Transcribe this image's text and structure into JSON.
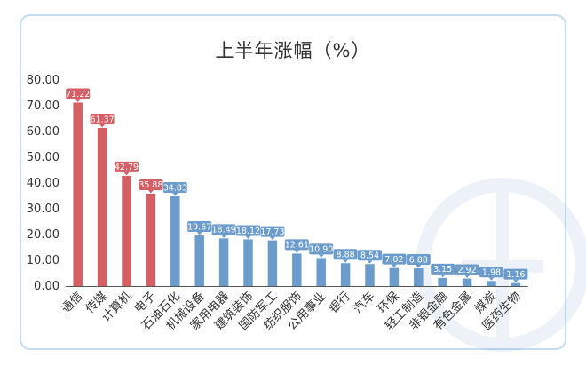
{
  "chart_data": {
    "type": "bar",
    "title": "上半年涨幅（%）",
    "xlabel": "",
    "ylabel": "",
    "ylim": [
      0,
      80
    ],
    "yticks": [
      "0.00",
      "10.00",
      "20.00",
      "30.00",
      "40.00",
      "50.00",
      "60.00",
      "70.00",
      "80.00"
    ],
    "grid": false,
    "legend": "none",
    "categories": [
      "通信",
      "传媒",
      "计算机",
      "电子",
      "石油石化",
      "机械设备",
      "家用电器",
      "建筑装饰",
      "国防军工",
      "纺织服饰",
      "公用事业",
      "银行",
      "汽车",
      "环保",
      "轻工制造",
      "非银金融",
      "有色金属",
      "煤炭",
      "医药生物"
    ],
    "values": [
      71.22,
      61.37,
      42.79,
      35.88,
      34.83,
      19.67,
      18.49,
      18.12,
      17.73,
      12.61,
      10.9,
      8.88,
      8.54,
      7.02,
      6.88,
      3.15,
      2.92,
      1.98,
      1.16
    ],
    "data_labels": [
      "71.22",
      "61.37",
      "42.79",
      "35.88",
      "34.83",
      "19.67",
      "18.49",
      "18.12",
      "17.73",
      "12.61",
      "10.90",
      "8.88",
      "8.54",
      "7.02",
      "6.88",
      "3.15",
      "2.92",
      "1.98",
      "1.16"
    ],
    "highlight_count": 4,
    "colors": {
      "highlight": "#d45f65",
      "normal": "#6b9ccc",
      "frame": "#c4dcef",
      "axis": "#555555"
    }
  }
}
